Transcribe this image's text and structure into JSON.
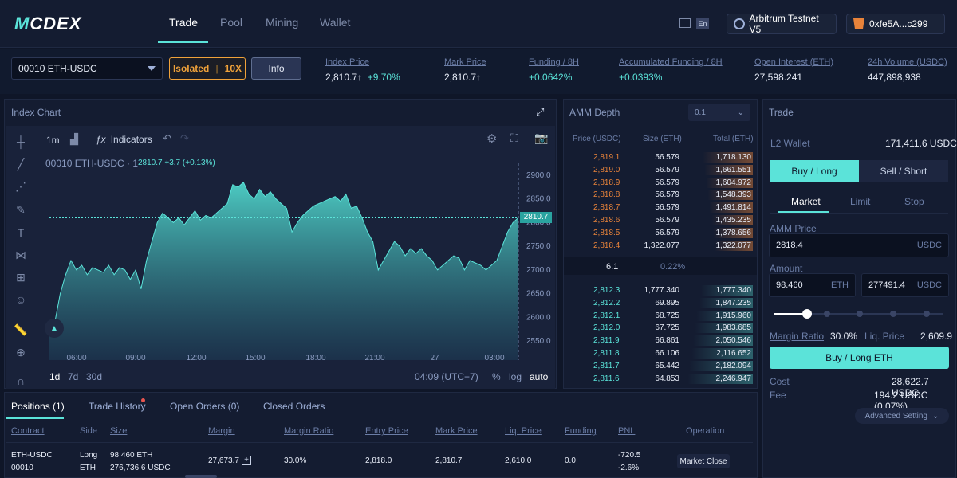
{
  "nav": {
    "logo_prefix": "M",
    "logo_suffix": "CDEX",
    "tabs": [
      "Trade",
      "Pool",
      "Mining",
      "Wallet"
    ],
    "network": "Arbitrum Testnet V5",
    "wallet": "0xfe5A...c299",
    "lang_badge": "En"
  },
  "market": {
    "pair": "00010 ETH-USDC",
    "isolated_label": "Isolated",
    "leverage": "10X",
    "info_label": "Info",
    "stats": [
      {
        "label": "Index Price",
        "value": "2,810.7↑",
        "change": "+9.70%"
      },
      {
        "label": "Mark Price",
        "value": "2,810.7↑",
        "change": ""
      },
      {
        "label": "Funding / 8H",
        "value": "+0.0642%",
        "change": ""
      },
      {
        "label": "Accumulated Funding / 8H",
        "value": "+0.0393%",
        "change": ""
      },
      {
        "label": "Open Interest (ETH)",
        "value": "27,598.241",
        "change": ""
      },
      {
        "label": "24h Volume (USDC)",
        "value": "447,898,938",
        "change": ""
      }
    ]
  },
  "chart": {
    "panel_title": "Index Chart",
    "interval": "1m",
    "indicators_label": "Indicators",
    "symbol": "00010 ETH-USDC · 1",
    "ohlc_last": "2810.7",
    "ohlc_change": "+3.7 (+0.13%)",
    "current_price_tag": "2810.7",
    "ranges": [
      "1d",
      "7d",
      "30d"
    ],
    "time_label": "04:09 (UTC+7)",
    "scale_opts": [
      "%",
      "log",
      "auto"
    ],
    "accent": "#5be3d9"
  },
  "chart_data": {
    "type": "area",
    "x_ticks": [
      "06:00",
      "09:00",
      "12:00",
      "15:00",
      "18:00",
      "21:00",
      "27",
      "03:00"
    ],
    "y_ticks": [
      2900.0,
      2850.0,
      2800.0,
      2750.0,
      2700.0,
      2650.0,
      2600.0,
      2550.0
    ],
    "ylim": [
      2510,
      2925
    ],
    "series": [
      {
        "values": [
          2560,
          2590,
          2650,
          2690,
          2720,
          2700,
          2710,
          2690,
          2705,
          2700,
          2695,
          2710,
          2690,
          2705,
          2700,
          2680,
          2700,
          2660,
          2720,
          2760,
          2800,
          2820,
          2810,
          2800,
          2810,
          2795,
          2810,
          2825,
          2805,
          2815,
          2810,
          2820,
          2830,
          2840,
          2880,
          2875,
          2885,
          2860,
          2850,
          2870,
          2855,
          2865,
          2850,
          2840,
          2830,
          2780,
          2800,
          2815,
          2825,
          2835,
          2840,
          2845,
          2850,
          2855,
          2845,
          2860,
          2830,
          2835,
          2810,
          2780,
          2760,
          2700,
          2720,
          2740,
          2760,
          2750,
          2730,
          2745,
          2735,
          2745,
          2730,
          2720,
          2700,
          2710,
          2720,
          2730,
          2725,
          2700,
          2720,
          2715,
          2710,
          2700,
          2710,
          2720,
          2750,
          2780,
          2800,
          2810
        ]
      }
    ]
  },
  "amm": {
    "title": "AMM Depth",
    "precision": "0.1",
    "headers": [
      "Price (USDC)",
      "Size (ETH)",
      "Total (ETH)"
    ],
    "asks": [
      {
        "price": "2,819.1",
        "size": "56.579",
        "total": "1,718.130",
        "depth": 0.77
      },
      {
        "price": "2,819.0",
        "size": "56.579",
        "total": "1,661.551",
        "depth": 0.74
      },
      {
        "price": "2,818.9",
        "size": "56.579",
        "total": "1,604.972",
        "depth": 0.72
      },
      {
        "price": "2,818.8",
        "size": "56.579",
        "total": "1,548.393",
        "depth": 0.69
      },
      {
        "price": "2,818.7",
        "size": "56.579",
        "total": "1,491.814",
        "depth": 0.67
      },
      {
        "price": "2,818.6",
        "size": "56.579",
        "total": "1,435.235",
        "depth": 0.64
      },
      {
        "price": "2,818.5",
        "size": "56.579",
        "total": "1,378.656",
        "depth": 0.61
      },
      {
        "price": "2,818.4",
        "size": "1,322.077",
        "total": "1,322.077",
        "depth": 0.59
      }
    ],
    "spread": "6.1",
    "spread_pct": "0.22%",
    "bids": [
      {
        "price": "2,812.3",
        "size": "1,777.340",
        "total": "1,777.340",
        "depth": 0.79
      },
      {
        "price": "2,812.2",
        "size": "69.895",
        "total": "1,847.235",
        "depth": 0.82
      },
      {
        "price": "2,812.1",
        "size": "68.725",
        "total": "1,915.960",
        "depth": 0.86
      },
      {
        "price": "2,812.0",
        "size": "67.725",
        "total": "1,983.685",
        "depth": 0.89
      },
      {
        "price": "2,811.9",
        "size": "66.861",
        "total": "2,050.546",
        "depth": 0.91
      },
      {
        "price": "2,811.8",
        "size": "66.106",
        "total": "2,116.652",
        "depth": 0.94
      },
      {
        "price": "2,811.7",
        "size": "65.442",
        "total": "2,182.094",
        "depth": 0.97
      },
      {
        "price": "2,811.6",
        "size": "64.853",
        "total": "2,246.947",
        "depth": 1.0
      }
    ]
  },
  "trade": {
    "title": "Trade",
    "wallet_label": "L2 Wallet",
    "wallet_value": "171,411.6 USDC",
    "buy_label": "Buy / Long",
    "sell_label": "Sell / Short",
    "order_types": [
      "Market",
      "Limit",
      "Stop"
    ],
    "amm_price_label": "AMM Price",
    "amm_price_value": "2818.4",
    "amm_price_unit": "USDC",
    "amount_label": "Amount",
    "amount_eth": "98.460",
    "amount_eth_unit": "ETH",
    "amount_usdc": "277491.4",
    "amount_usdc_unit": "USDC",
    "slider_fraction": 0.2,
    "margin_ratio_label": "Margin Ratio",
    "margin_ratio_value": "30.0%",
    "liq_price_label": "Liq. Price",
    "liq_price_value": "2,609.9",
    "submit_label": "Buy / Long ETH",
    "cost_label": "Cost",
    "cost_value": "28,622.7 USDC",
    "fee_label": "Fee",
    "fee_value": "194.2 USDC (0.07%)",
    "advanced_label": "Advanced Setting"
  },
  "positions": {
    "tabs": [
      "Positions (1)",
      "Trade History",
      "Open Orders (0)",
      "Closed Orders"
    ],
    "headers": [
      "Contract",
      "Side",
      "Size",
      "Margin",
      "Margin Ratio",
      "Entry Price",
      "Mark Price",
      "Liq. Price",
      "Funding",
      "PNL",
      "Operation"
    ],
    "row": {
      "contract": "ETH-USDC",
      "contract_id": "00010",
      "side": "Long",
      "side_unit": "ETH",
      "size": "98.460 ETH",
      "size_usdc": "276,736.6 USDC",
      "margin": "27,673.7",
      "margin_ratio": "30.0%",
      "entry_price": "2,818.0",
      "mark_price": "2,810.7",
      "liq_price": "2,610.0",
      "funding": "0.0",
      "pnl": "-720.5",
      "pnl_pct": "-2.6%",
      "operation": "Market Close"
    }
  }
}
